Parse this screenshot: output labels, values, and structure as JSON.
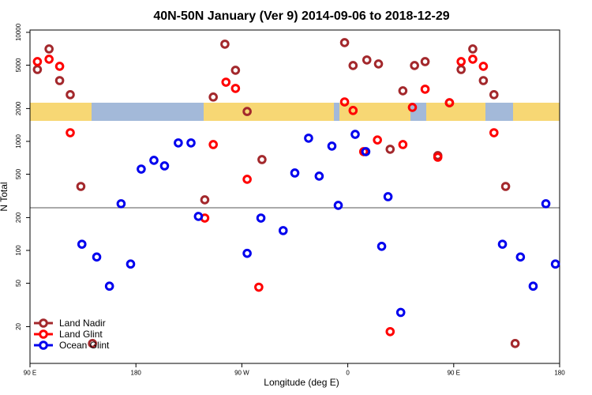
{
  "chart_data": {
    "type": "scatter",
    "title": "40N-50N January (Ver 9)   2014-09-06 to 2018-12-29",
    "x_label": "Longitude (deg E)",
    "y_label": "N Total",
    "log_y": true,
    "legend": "lower left",
    "xlim": [
      0,
      5
    ],
    "xticks": [
      {
        "value": 0,
        "label": "90 E"
      },
      {
        "value": 1,
        "label": "180"
      },
      {
        "value": 2,
        "label": "90 W"
      },
      {
        "value": 3,
        "label": "0"
      },
      {
        "value": 4,
        "label": "90 E"
      },
      {
        "value": 5,
        "label": "180"
      }
    ],
    "ylim": [
      9.2,
      10500
    ],
    "yticks": [
      20,
      50,
      100,
      200,
      500,
      1000,
      2000,
      5000,
      10000
    ],
    "series": [
      {
        "name": "Land Nadir",
        "color": "#a3282c",
        "x": [
          0.07,
          0.18,
          0.28,
          0.38,
          0.48,
          0.59,
          1.65,
          1.73,
          1.84,
          1.94,
          2.05,
          2.19,
          2.97,
          3.05,
          3.18,
          3.29,
          3.4,
          3.52,
          3.63,
          3.73,
          3.85,
          3.96,
          4.07,
          4.18,
          4.28,
          4.38,
          4.49,
          4.58
        ],
        "values": [
          4560,
          7040,
          3610,
          2680,
          386,
          14,
          291,
          2550,
          7790,
          4490,
          1880,
          681,
          8050,
          4960,
          5580,
          5130,
          847,
          2910,
          4960,
          5390,
          741,
          2260,
          4560,
          7040,
          3610,
          2680,
          386,
          14
        ]
      },
      {
        "name": "Land Glint",
        "color": "#ff0000",
        "x": [
          0.07,
          0.18,
          0.28,
          0.38,
          1.65,
          1.73,
          1.85,
          1.94,
          2.05,
          2.16,
          2.97,
          3.05,
          3.15,
          3.28,
          3.4,
          3.52,
          3.61,
          3.73,
          3.85,
          3.96,
          4.07,
          4.18,
          4.28,
          4.38
        ],
        "values": [
          5390,
          5670,
          4880,
          1200,
          198,
          935,
          3490,
          3060,
          449,
          46,
          2300,
          1920,
          805,
          1030,
          18,
          935,
          2050,
          3010,
          716,
          2260,
          5390,
          5670,
          4880,
          1200
        ]
      },
      {
        "name": "Ocean Glint",
        "color": "#0000ee",
        "x": [
          0.49,
          0.63,
          0.75,
          0.86,
          0.95,
          1.05,
          1.17,
          1.27,
          1.4,
          1.52,
          1.59,
          2.05,
          2.18,
          2.39,
          2.5,
          2.63,
          2.73,
          2.85,
          2.91,
          3.07,
          3.17,
          3.32,
          3.38,
          3.5,
          4.46,
          4.63,
          4.75,
          4.87,
          4.96
        ],
        "values": [
          114,
          87,
          47,
          268,
          75,
          557,
          670,
          596,
          968,
          968,
          205,
          94,
          198,
          152,
          513,
          1070,
          480,
          905,
          259,
          1160,
          805,
          109,
          311,
          27,
          114,
          87,
          47,
          268,
          75
        ]
      }
    ]
  }
}
